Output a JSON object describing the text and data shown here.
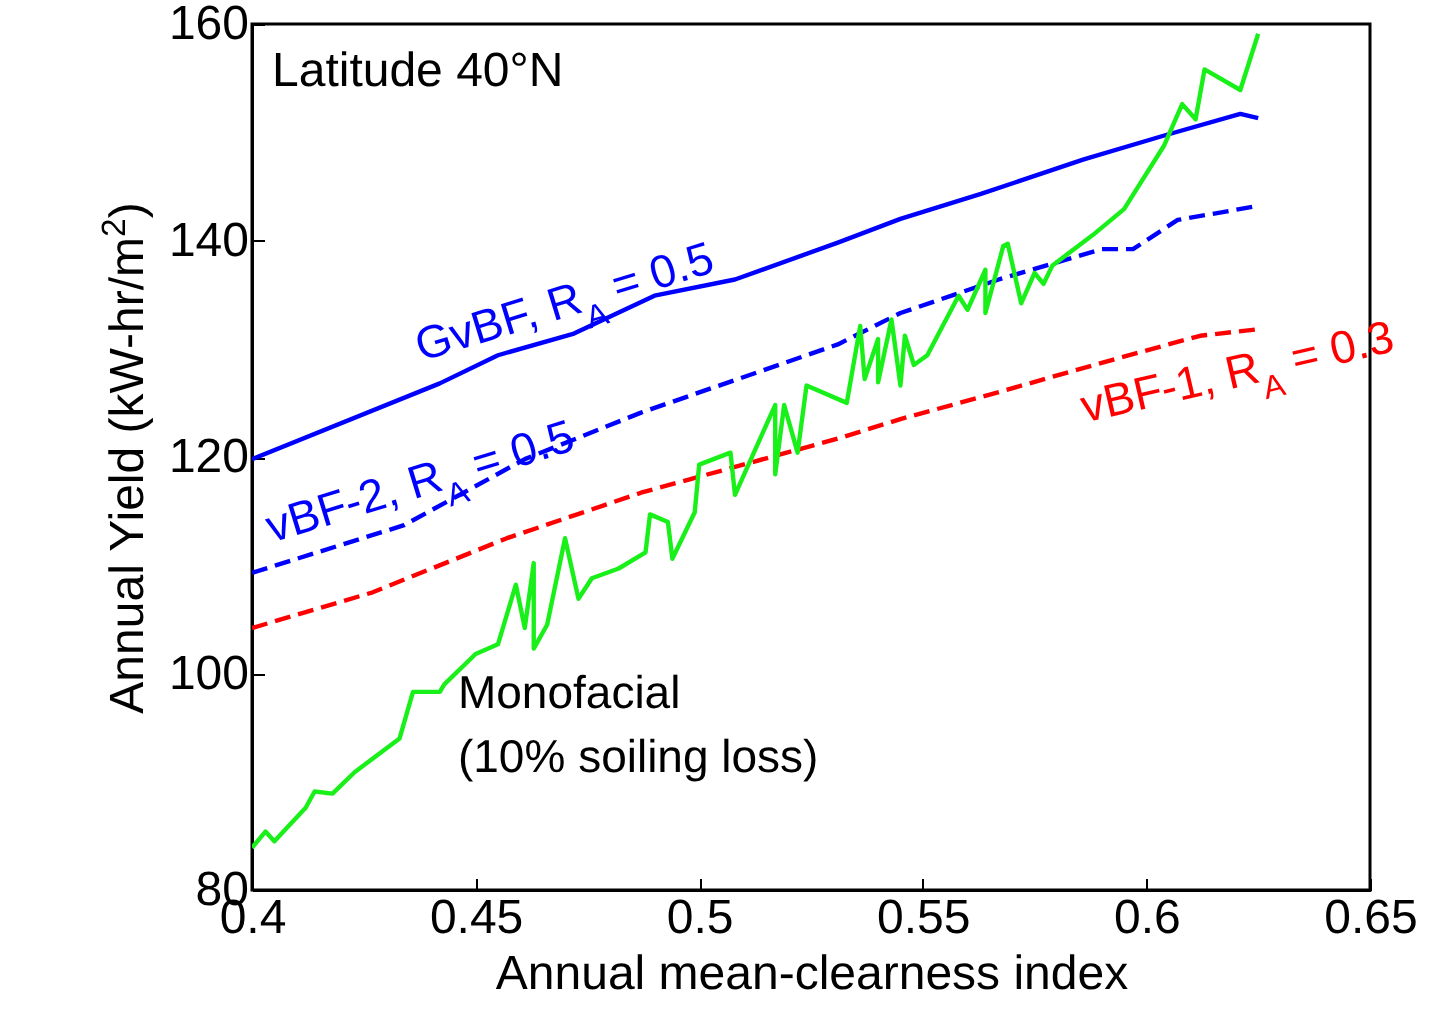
{
  "chart_data": {
    "type": "line",
    "xlabel": "Annual mean-clearness index",
    "ylabel": "Annual Yield (kW-hr/m$^{2}$)",
    "annotations": [
      "Latitude 40°N"
    ],
    "xlim": [
      0.4,
      0.65
    ],
    "xticks": [
      0.4,
      0.45,
      0.5,
      0.55,
      0.6,
      0.65
    ],
    "ylim": [
      80,
      160
    ],
    "yticks": [
      80,
      100,
      120,
      140,
      160
    ],
    "grid": false,
    "marker": "none",
    "series": [
      {
        "name": "GvBF, R$_{A}$ = 0.5",
        "color": "#0000ff",
        "line_style": "solid",
        "x": [
          0.4,
          0.442,
          0.455,
          0.472,
          0.49,
          0.508,
          0.531,
          0.545,
          0.563,
          0.586,
          0.604,
          0.621,
          0.625
        ],
        "values": [
          119.8,
          126.8,
          129.4,
          131.4,
          134.9,
          136.4,
          139.8,
          142.0,
          144.3,
          147.5,
          149.7,
          151.7,
          151.3
        ]
      },
      {
        "name": "vBF-2, R$_{A}$ = 0.5",
        "color": "#0000ff",
        "line_style": "dashed",
        "x": [
          0.4,
          0.434,
          0.461,
          0.487,
          0.531,
          0.545,
          0.567,
          0.59,
          0.597,
          0.607,
          0.625
        ],
        "values": [
          109.3,
          113.7,
          119.8,
          124.1,
          130.4,
          133.3,
          136.4,
          139.2,
          139.2,
          141.9,
          143.2
        ]
      },
      {
        "name": "vBF-1, R$_{A}$ = 0.3",
        "color": "#ff0000",
        "line_style": "dashed",
        "x": [
          0.4,
          0.427,
          0.457,
          0.487,
          0.531,
          0.545,
          0.567,
          0.59,
          0.612,
          0.625
        ],
        "values": [
          104.2,
          107.5,
          112.5,
          116.7,
          121.7,
          123.5,
          126.0,
          128.7,
          131.2,
          131.8
        ]
      },
      {
        "name": "Monofacial\n(10% soiling loss)",
        "color": "#19f019",
        "line_style": "solid",
        "x": [
          0.4,
          0.403,
          0.405,
          0.412,
          0.414,
          0.418,
          0.423,
          0.433,
          0.436,
          0.442,
          0.443,
          0.45,
          0.455,
          0.459,
          0.461,
          0.463,
          0.463,
          0.466,
          0.47,
          0.473,
          0.476,
          0.482,
          0.488,
          0.489,
          0.493,
          0.494,
          0.499,
          0.5,
          0.507,
          0.508,
          0.512,
          0.517,
          0.517,
          0.519,
          0.522,
          0.524,
          0.533,
          0.536,
          0.537,
          0.54,
          0.54,
          0.543,
          0.545,
          0.546,
          0.548,
          0.551,
          0.558,
          0.56,
          0.564,
          0.564,
          0.568,
          0.569,
          0.572,
          0.575,
          0.577,
          0.579,
          0.588,
          0.595,
          0.604,
          0.608,
          0.611,
          0.613,
          0.621,
          0.625
        ],
        "values": [
          83.9,
          85.4,
          84.5,
          87.6,
          89.1,
          88.9,
          90.9,
          94.0,
          98.3,
          98.3,
          99.0,
          101.8,
          102.7,
          108.2,
          104.2,
          110.2,
          102.3,
          104.5,
          112.5,
          106.9,
          108.8,
          109.7,
          111.2,
          114.7,
          114.0,
          110.6,
          114.9,
          119.3,
          120.4,
          116.5,
          120.2,
          124.8,
          118.4,
          124.8,
          120.4,
          126.6,
          125.0,
          132.1,
          127.2,
          130.9,
          126.9,
          132.7,
          126.6,
          131.2,
          128.5,
          129.4,
          134.9,
          133.6,
          137.3,
          133.3,
          139.5,
          139.7,
          134.2,
          137.0,
          136.0,
          137.7,
          140.5,
          142.9,
          148.8,
          152.6,
          151.2,
          155.8,
          153.9,
          159.1
        ]
      }
    ]
  }
}
